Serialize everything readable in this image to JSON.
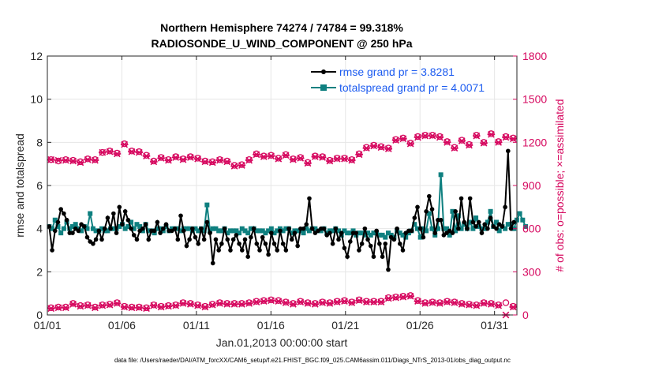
{
  "chart_data": {
    "type": "line",
    "title": "Northern Hemisphere 74274 / 74784 = 99.318%",
    "subtitle": "RADIOSONDE_U_WIND_COMPONENT @ 250 hPa",
    "xlabel": "Jan.01,2013 00:00:00 start",
    "ylabel": "rmse and totalspread",
    "y2label": "# of obs: o=possible; ×=assimilated",
    "footnote": "data file: /Users/raeder/DAI/ATM_forcXX/CAM6_setup/f.e21.FHIST_BGC.f09_025.CAM6assim.011/Diags_NTrS_2013-01/obs_diag_output.nc",
    "xlim": [
      0,
      31.5
    ],
    "ylim": [
      0,
      12
    ],
    "y2lim": [
      0,
      1800
    ],
    "x_ticks": [
      0,
      5,
      10,
      15,
      20,
      25,
      30
    ],
    "x_tick_labels": [
      "01/01",
      "01/06",
      "01/11",
      "01/16",
      "01/21",
      "01/26",
      "01/31"
    ],
    "y_ticks": [
      "0",
      "2",
      "4",
      "6",
      "8",
      "10",
      "12"
    ],
    "y2_ticks": [
      "0",
      "300",
      "600",
      "900",
      "1200",
      "1500",
      "1800"
    ],
    "legend": [
      "rmse grand pr = 3.8281",
      "totalspread grand pr = 4.0071"
    ],
    "legend_position": "top-right",
    "colors": {
      "rmse": "#000000",
      "spread": "#0f8080",
      "obs": "#d6085f",
      "legend_text": "#1d5cf0"
    },
    "series": [
      {
        "name": "rmse",
        "axis": "left",
        "values": [
          4.1,
          3.0,
          3.9,
          4.3,
          4.9,
          4.7,
          4.4,
          3.8,
          3.8,
          4.0,
          3.9,
          4.2,
          4.1,
          3.6,
          3.4,
          3.3,
          3.5,
          3.9,
          3.5,
          4.0,
          4.5,
          4.0,
          4.7,
          3.8,
          5.0,
          4.2,
          4.8,
          4.4,
          4.0,
          3.7,
          3.5,
          3.9,
          4.0,
          4.2,
          3.5,
          3.9,
          3.9,
          4.3,
          3.8,
          4.0,
          4.2,
          3.9,
          3.9,
          4.0,
          3.5,
          4.6,
          3.9,
          3.2,
          3.5,
          4.0,
          3.6,
          3.3,
          4.0,
          3.5,
          4.3,
          3.8,
          2.4,
          3.5,
          3.0,
          3.3,
          4.0,
          3.5,
          3.0,
          3.5,
          3.7,
          3.3,
          3.0,
          3.5,
          2.7,
          3.6,
          4.0,
          3.3,
          3.0,
          3.6,
          3.3,
          2.8,
          3.8,
          3.3,
          3.0,
          3.9,
          3.3,
          3.0,
          4.0,
          3.5,
          3.8,
          3.2,
          4.0,
          4.0,
          4.2,
          5.4,
          4.0,
          3.8,
          3.9,
          4.0,
          4.0,
          3.7,
          3.8,
          3.3,
          4.0,
          3.5,
          3.8,
          3.1,
          2.7,
          3.4,
          3.8,
          3.8,
          3.0,
          3.3,
          4.0,
          3.5,
          3.2,
          2.7,
          3.9,
          3.3,
          2.7,
          3.3,
          2.1,
          3.6,
          3.5,
          4.0,
          3.3,
          3.0,
          3.8,
          3.9,
          3.9,
          4.5,
          5.0,
          4.0,
          3.6,
          4.8,
          5.5,
          4.9,
          3.8,
          4.4,
          4.4,
          3.7,
          3.8,
          3.9,
          3.8,
          4.8,
          4.0,
          5.4,
          4.3,
          4.0,
          5.4,
          4.3,
          4.1,
          4.3,
          3.8,
          4.2,
          4.0,
          4.5,
          4.1,
          4.0,
          4.2,
          4.1,
          5.0,
          7.6,
          4.0,
          4.3
        ]
      },
      {
        "name": "totalspread",
        "axis": "left",
        "values": [
          4.1,
          4.0,
          4.4,
          4.1,
          3.8,
          4.0,
          4.3,
          4.0,
          4.1,
          4.2,
          4.0,
          3.9,
          4.1,
          4.0,
          4.7,
          4.0,
          3.9,
          3.9,
          4.0,
          3.9,
          3.9,
          4.0,
          4.0,
          4.0,
          4.1,
          4.2,
          4.0,
          4.1,
          4.3,
          4.0,
          4.2,
          4.1,
          3.9,
          4.2,
          3.9,
          3.9,
          3.8,
          4.0,
          4.0,
          3.9,
          4.1,
          3.9,
          4.0,
          4.0,
          4.0,
          3.9,
          4.0,
          4.0,
          4.0,
          3.9,
          4.0,
          3.9,
          4.0,
          3.9,
          5.1,
          3.9,
          4.0,
          4.0,
          3.9,
          3.9,
          4.0,
          3.8,
          3.9,
          3.9,
          3.9,
          3.8,
          4.0,
          3.9,
          3.8,
          4.0,
          4.0,
          3.9,
          3.9,
          3.9,
          3.8,
          3.9,
          4.0,
          3.8,
          3.9,
          4.0,
          3.9,
          4.0,
          4.0,
          3.8,
          3.9,
          3.9,
          3.9,
          3.8,
          4.0,
          3.9,
          4.0,
          4.0,
          3.9,
          3.9,
          4.0,
          3.8,
          3.9,
          3.9,
          4.0,
          3.9,
          3.7,
          3.9,
          3.8,
          3.8,
          3.9,
          3.7,
          3.8,
          3.8,
          3.7,
          3.8,
          3.7,
          3.8,
          3.8,
          3.7,
          3.7,
          3.6,
          3.8,
          3.7,
          3.6,
          3.9,
          3.8,
          3.7,
          3.6,
          3.8,
          3.9,
          4.2,
          4.0,
          3.6,
          4.0,
          3.9,
          4.7,
          4.0,
          3.7,
          4.0,
          6.5,
          4.0,
          4.0,
          3.7,
          4.8,
          3.9,
          4.6,
          4.0,
          4.2,
          4.0,
          4.3,
          4.0,
          4.5,
          4.1,
          4.0,
          4.0,
          4.3,
          4.8,
          4.1,
          4.3,
          3.9,
          4.1,
          4.0,
          4.2,
          4.2,
          4.0,
          4.4,
          4.7,
          4.4,
          4.1
        ]
      },
      {
        "name": "possible",
        "axis": "right",
        "values": [
          1080,
          1070,
          1080,
          1075,
          1065,
          1085,
          1080,
          1130,
          1140,
          1125,
          1190,
          1140,
          1135,
          1110,
          1070,
          1095,
          1080,
          1100,
          1085,
          1100,
          1090,
          1070,
          1065,
          1080,
          1070,
          1040,
          1045,
          1080,
          1120,
          1105,
          1110,
          1090,
          1115,
          1085,
          1095,
          1060,
          1105,
          1100,
          1075,
          1090,
          1090,
          1080,
          1120,
          1165,
          1180,
          1170,
          1160,
          1220,
          1230,
          1195,
          1240,
          1250,
          1250,
          1240,
          1205,
          1165,
          1215,
          1185,
          1250,
          1200,
          1260,
          1205,
          1240,
          1230
        ]
      },
      {
        "name": "assimilated",
        "axis": "right",
        "values": [
          1080,
          1075,
          1075,
          1070,
          1060,
          1080,
          1075,
          1130,
          1135,
          1120,
          1185,
          1135,
          1130,
          1105,
          1065,
          1090,
          1075,
          1095,
          1080,
          1095,
          1085,
          1065,
          1060,
          1075,
          1065,
          1035,
          1040,
          1075,
          1115,
          1100,
          1105,
          1085,
          1110,
          1080,
          1090,
          1055,
          1100,
          1095,
          1070,
          1085,
          1085,
          1075,
          1115,
          1160,
          1175,
          1165,
          1155,
          1215,
          1225,
          1190,
          1235,
          1245,
          1245,
          1235,
          1200,
          1160,
          1210,
          1180,
          1245,
          1195,
          1255,
          1200,
          1235,
          1225
        ]
      },
      {
        "name": "possible_low",
        "axis": "right",
        "values": [
          50,
          55,
          55,
          80,
          65,
          70,
          55,
          70,
          75,
          85,
          60,
          55,
          55,
          50,
          70,
          60,
          65,
          70,
          85,
          80,
          70,
          60,
          75,
          85,
          80,
          80,
          80,
          85,
          95,
          100,
          105,
          100,
          90,
          80,
          95,
          85,
          80,
          90,
          85,
          95,
          100,
          90,
          105,
          95,
          95,
          95,
          120,
          125,
          130,
          135,
          100,
          85,
          90,
          85,
          95,
          90,
          80,
          75,
          70,
          85,
          80,
          70,
          85,
          60
        ]
      },
      {
        "name": "assimilated_low",
        "axis": "right",
        "values": [
          45,
          50,
          50,
          75,
          60,
          65,
          50,
          65,
          70,
          80,
          55,
          50,
          50,
          45,
          65,
          55,
          60,
          65,
          80,
          75,
          65,
          55,
          70,
          80,
          75,
          75,
          75,
          80,
          90,
          95,
          100,
          95,
          85,
          75,
          90,
          80,
          75,
          85,
          80,
          90,
          95,
          85,
          100,
          90,
          90,
          90,
          115,
          120,
          125,
          130,
          95,
          80,
          85,
          80,
          90,
          85,
          75,
          70,
          65,
          80,
          75,
          65,
          0,
          55
        ]
      }
    ]
  }
}
